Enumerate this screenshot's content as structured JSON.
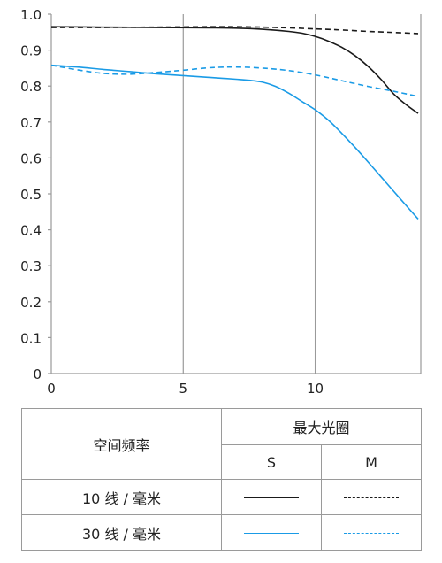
{
  "colors": {
    "black": "#1a1a1a",
    "blue": "#1a9be6",
    "grid": "#9a9a9a",
    "axis": "#9a9a9a"
  },
  "chart_data": {
    "type": "line",
    "xlim": [
      0,
      14
    ],
    "ylim": [
      0,
      1.0
    ],
    "x_ticks": [
      "0",
      "5",
      "10"
    ],
    "x_tick_values": [
      0,
      5,
      10
    ],
    "y_ticks": [
      "0",
      "0.1",
      "0.2",
      "0.3",
      "0.4",
      "0.5",
      "0.6",
      "0.7",
      "0.8",
      "0.9",
      "1.0"
    ],
    "y_tick_values": [
      0,
      0.1,
      0.2,
      0.3,
      0.4,
      0.5,
      0.6,
      0.7,
      0.8,
      0.9,
      1.0
    ],
    "grid": true,
    "series": [
      {
        "name": "10 线 / 毫米 S",
        "color": "black",
        "dash": "solid",
        "x": [
          0,
          2,
          4,
          6,
          7,
          8,
          9,
          9.5,
          10,
          10.5,
          11,
          11.5,
          12,
          12.5,
          13,
          13.5,
          13.9
        ],
        "y": [
          0.965,
          0.964,
          0.963,
          0.962,
          0.961,
          0.958,
          0.952,
          0.947,
          0.938,
          0.925,
          0.908,
          0.885,
          0.855,
          0.818,
          0.776,
          0.745,
          0.724
        ]
      },
      {
        "name": "10 线 / 毫米 M",
        "color": "black",
        "dash": "dashed",
        "x": [
          0,
          2,
          4,
          6,
          7,
          8,
          9,
          10,
          11,
          12,
          13,
          13.9
        ],
        "y": [
          0.963,
          0.963,
          0.964,
          0.965,
          0.965,
          0.964,
          0.962,
          0.959,
          0.956,
          0.952,
          0.949,
          0.946
        ]
      },
      {
        "name": "30 线 / 毫米 S",
        "color": "blue",
        "dash": "solid",
        "x": [
          0,
          1,
          2,
          3,
          4,
          5,
          6,
          7,
          7.5,
          8,
          8.5,
          9,
          9.5,
          10,
          10.5,
          11,
          11.5,
          12,
          12.5,
          13,
          13.5,
          13.9
        ],
        "y": [
          0.858,
          0.853,
          0.846,
          0.84,
          0.834,
          0.829,
          0.824,
          0.819,
          0.816,
          0.811,
          0.799,
          0.78,
          0.757,
          0.734,
          0.705,
          0.669,
          0.63,
          0.589,
          0.547,
          0.505,
          0.463,
          0.43
        ]
      },
      {
        "name": "30 线 / 毫米 M",
        "color": "blue",
        "dash": "dashed",
        "x": [
          0,
          1,
          2,
          3,
          4,
          5,
          6,
          7,
          8,
          9,
          10,
          11,
          12,
          13,
          13.9
        ],
        "y": [
          0.858,
          0.845,
          0.835,
          0.833,
          0.838,
          0.844,
          0.851,
          0.853,
          0.85,
          0.843,
          0.831,
          0.815,
          0.799,
          0.785,
          0.771
        ]
      }
    ]
  },
  "table": {
    "header_spatial": "空间频率",
    "header_aperture": "最大光圈",
    "col_s": "S",
    "col_m": "M",
    "rows": [
      {
        "label": "10 线 / 毫米",
        "color": "black"
      },
      {
        "label": "30 线 / 毫米",
        "color": "blue"
      }
    ]
  }
}
